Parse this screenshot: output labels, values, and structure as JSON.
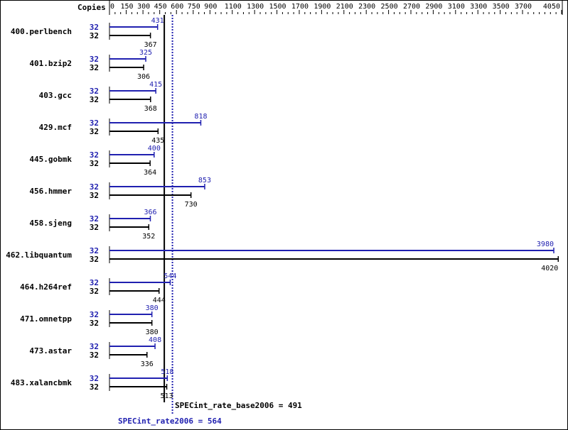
{
  "chart_data": {
    "type": "bar",
    "orientation": "horizontal",
    "axis_label": "Copies",
    "xlim": [
      0,
      4050
    ],
    "ticks": [
      0,
      150,
      300,
      450,
      600,
      750,
      900,
      1100,
      1300,
      1500,
      1700,
      1900,
      2100,
      2300,
      2500,
      2700,
      2900,
      3100,
      3300,
      3500,
      3700,
      4050
    ],
    "categories": [
      "400.perlbench",
      "401.bzip2",
      "403.gcc",
      "429.mcf",
      "445.gobmk",
      "456.hmmer",
      "458.sjeng",
      "462.libquantum",
      "464.h264ref",
      "471.omnetpp",
      "473.astar",
      "483.xalancbmk"
    ],
    "series": [
      {
        "key": "peak",
        "copies": [
          32,
          32,
          32,
          32,
          32,
          32,
          32,
          32,
          32,
          32,
          32,
          32
        ],
        "values": [
          431,
          325,
          415,
          818,
          400,
          853,
          366,
          3980,
          544,
          380,
          408,
          518
        ]
      },
      {
        "key": "base",
        "copies": [
          32,
          32,
          32,
          32,
          32,
          32,
          32,
          32,
          32,
          32,
          32,
          32
        ],
        "values": [
          367,
          306,
          368,
          435,
          364,
          730,
          352,
          4020,
          444,
          380,
          336,
          513
        ]
      }
    ],
    "summary": {
      "base_label": "SPECint_rate_base2006 = 491",
      "base_value": 491,
      "peak_label": "SPECint_rate2006 = 564",
      "peak_value": 564
    },
    "colors": {
      "peak": "#2020b0",
      "base": "#000000"
    }
  }
}
